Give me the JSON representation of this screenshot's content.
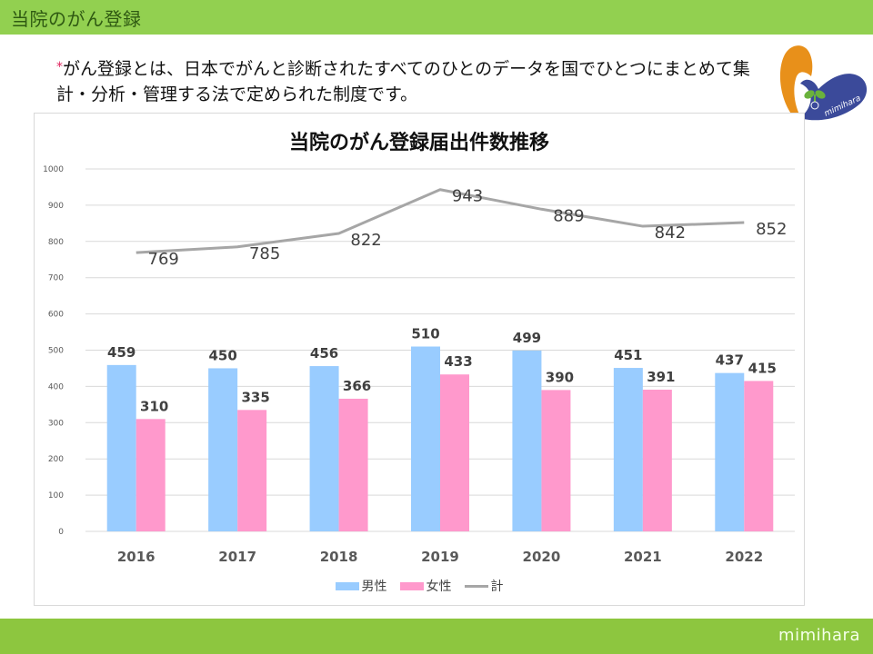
{
  "header": {
    "title": "当院のがん登録"
  },
  "intro": {
    "asterisk": "*",
    "text": "がん登録とは、日本でがんと診断されたすべてのひとのデータを国でひとつにまとめて集計・分析・管理する法で定められた制度です。"
  },
  "logo": {
    "icon": "mimihara-heart-logo",
    "text": "mimihara"
  },
  "footer": {
    "brand": "mimihara"
  },
  "colors": {
    "header_bar": "#92d050",
    "footer_bar": "#8dc63f",
    "male": "#99ccff",
    "female": "#ff99cc",
    "total": "#a6a6a6"
  },
  "chart_data": {
    "type": "bar",
    "title": "当院のがん登録届出件数推移",
    "xlabel": "",
    "ylabel": "",
    "categories": [
      "2016",
      "2017",
      "2018",
      "2019",
      "2020",
      "2021",
      "2022"
    ],
    "series": [
      {
        "name": "男性",
        "type": "bar",
        "values": [
          459,
          450,
          456,
          510,
          499,
          451,
          437
        ]
      },
      {
        "name": "女性",
        "type": "bar",
        "values": [
          310,
          335,
          366,
          433,
          390,
          391,
          415
        ]
      },
      {
        "name": "計",
        "type": "line",
        "values": [
          769,
          785,
          822,
          943,
          889,
          842,
          852
        ]
      }
    ],
    "ylim": [
      0,
      1000
    ],
    "yticks": [
      0,
      100,
      200,
      300,
      400,
      500,
      600,
      700,
      800,
      900,
      1000
    ],
    "grid": true,
    "legend_position": "bottom"
  }
}
